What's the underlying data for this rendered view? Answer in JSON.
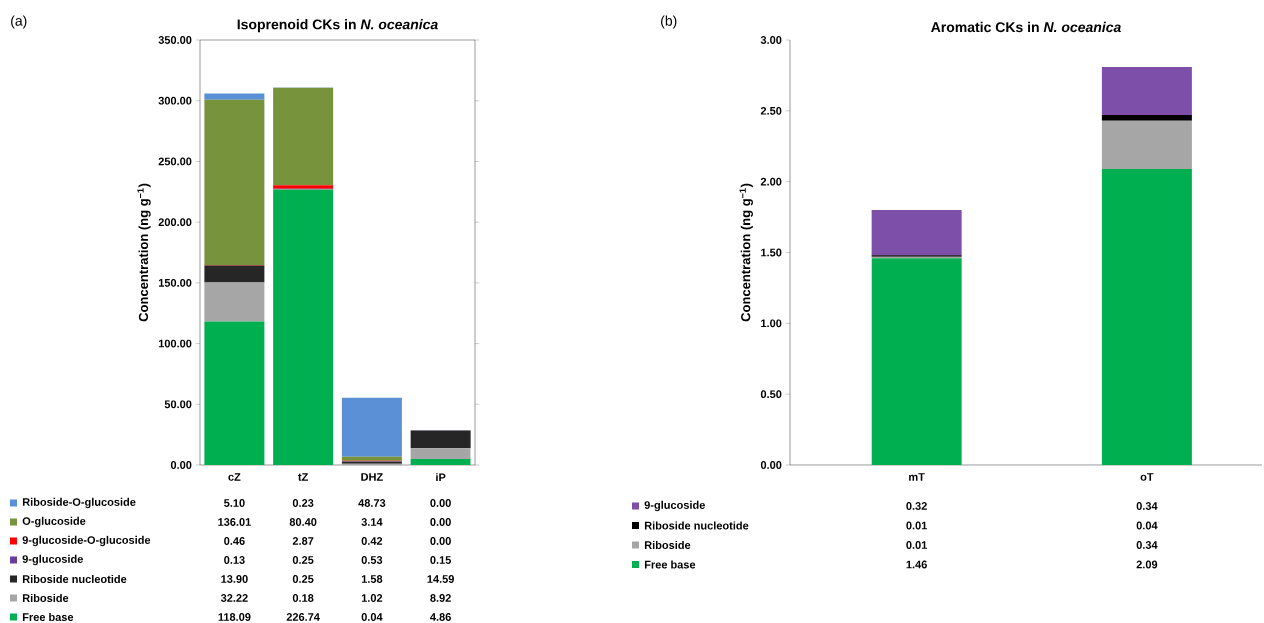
{
  "chart_data": [
    {
      "type": "bar",
      "stacked": true,
      "title": "Isoprenoid CKs in *N. oceanica*",
      "ylabel": "Concentration (ng g$^{−1}$)",
      "annotations": [
        "(a)"
      ],
      "legend": "bottom",
      "categories": [
        "cZ",
        "tZ",
        "DHZ",
        "iP"
      ],
      "ylim": [
        0,
        350
      ],
      "yticks": [
        {
          "value": 0,
          "label": "0.00"
        },
        {
          "value": 50,
          "label": "50.00"
        },
        {
          "value": 100,
          "label": "100.00"
        },
        {
          "value": 150,
          "label": "150.00"
        },
        {
          "value": 200,
          "label": "200.00"
        },
        {
          "value": 250,
          "label": "250.00"
        },
        {
          "value": 300,
          "label": "300.00"
        },
        {
          "value": 350,
          "label": "350.00"
        }
      ],
      "series": [
        {
          "name": "Free base",
          "color": "#00b050",
          "values": [
            118.09,
            226.74,
            0.04,
            4.86
          ],
          "value_labels": [
            "118.09",
            "226.74",
            "0.04",
            "4.86"
          ]
        },
        {
          "name": "Riboside",
          "color": "#a6a6a6",
          "values": [
            32.22,
            0.18,
            1.02,
            8.92
          ],
          "value_labels": [
            "32.22",
            "0.18",
            "1.02",
            "8.92"
          ]
        },
        {
          "name": "Riboside nucleotide",
          "color": "#262626",
          "values": [
            13.9,
            0.25,
            1.58,
            14.59
          ],
          "value_labels": [
            "13.90",
            "0.25",
            "1.58",
            "14.59"
          ]
        },
        {
          "name": "9-glucoside",
          "color": "#6a3d9a",
          "values": [
            0.13,
            0.25,
            0.53,
            0.15
          ],
          "value_labels": [
            "0.13",
            "0.25",
            "0.53",
            "0.15"
          ]
        },
        {
          "name": "9-glucoside-O-glucoside",
          "color": "#ff0000",
          "values": [
            0.46,
            2.87,
            0.42,
            0.0
          ],
          "value_labels": [
            "0.46",
            "2.87",
            "0.42",
            "0.00"
          ]
        },
        {
          "name": "O-glucoside",
          "color": "#77933c",
          "values": [
            136.01,
            80.4,
            3.14,
            0.0
          ],
          "value_labels": [
            "136.01",
            "80.40",
            "3.14",
            "0.00"
          ]
        },
        {
          "name": "Riboside-O-glucoside",
          "color": "#5b8fd6",
          "values": [
            5.1,
            0.23,
            48.73,
            0.0
          ],
          "value_labels": [
            "5.10",
            "0.23",
            "48.73",
            "0.00"
          ]
        }
      ]
    },
    {
      "type": "bar",
      "stacked": true,
      "title": "Aromatic CKs in *N. oceanica*",
      "ylabel": "Concentration (ng g$^{−1}$)",
      "annotations": [
        "(b)"
      ],
      "legend": "bottom",
      "categories": [
        "mT",
        "oT"
      ],
      "ylim": [
        0,
        3
      ],
      "yticks": [
        {
          "value": 0,
          "label": "0.00"
        },
        {
          "value": 0.5,
          "label": "0.50"
        },
        {
          "value": 1,
          "label": "1.00"
        },
        {
          "value": 1.5,
          "label": "1.50"
        },
        {
          "value": 2,
          "label": "2.00"
        },
        {
          "value": 2.5,
          "label": "2.50"
        },
        {
          "value": 3,
          "label": "3.00"
        }
      ],
      "series": [
        {
          "name": "Free base",
          "color": "#00b050",
          "values": [
            1.46,
            2.09
          ],
          "value_labels": [
            "1.46",
            "2.09"
          ]
        },
        {
          "name": "Riboside",
          "color": "#a6a6a6",
          "values": [
            0.01,
            0.34
          ],
          "value_labels": [
            "0.01",
            "0.34"
          ]
        },
        {
          "name": "Riboside nucleotide",
          "color": "#000000",
          "values": [
            0.01,
            0.04
          ],
          "value_labels": [
            "0.01",
            "0.04"
          ]
        },
        {
          "name": "9-glucoside",
          "color": "#7d4fa8",
          "values": [
            0.32,
            0.34
          ],
          "value_labels": [
            "0.32",
            "0.34"
          ]
        }
      ]
    }
  ]
}
